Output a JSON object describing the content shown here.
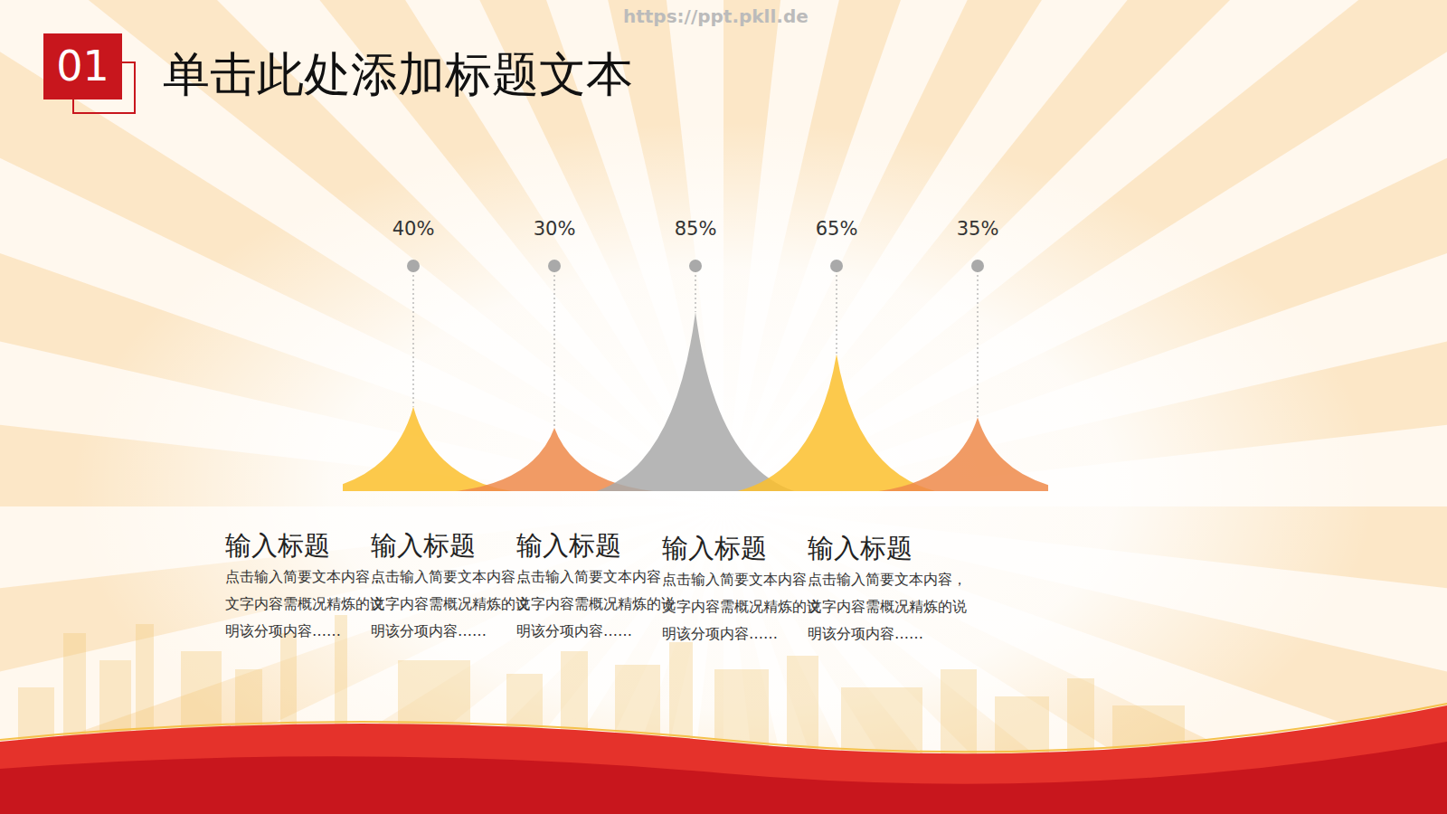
{
  "badge": "01",
  "title": "单击此处添加标题文本",
  "watermark": "https://ppt.pkll.de",
  "chart_data": {
    "type": "peak",
    "categories": [
      "输入标题",
      "输入标题",
      "输入标题",
      "输入标题",
      "输入标题"
    ],
    "descriptions": [
      "点击输入简要文本内容，文字内容需概况精炼的说明该分项内容……",
      "点击输入简要文本内容，文字内容需概况精炼的说明该分项内容……",
      "点击输入简要文本内容，文字内容需概况精炼的说明该分项内容……",
      "点击输入简要文本内容，文字内容需概况精炼的说明该分项内容……",
      "点击输入简要文本内容，文字内容需概况精炼的说明该分项内容……"
    ],
    "values": [
      40,
      30,
      85,
      65,
      35
    ],
    "value_labels": [
      "40%",
      "30%",
      "85%",
      "65%",
      "35%"
    ],
    "colors": [
      "#fbc02d",
      "#ee8a4a",
      "#a9a9a9",
      "#fbc02d",
      "#ee8a4a"
    ],
    "ylim": [
      0,
      100
    ],
    "data_labels": true,
    "tick_labels": false,
    "grid": false
  }
}
